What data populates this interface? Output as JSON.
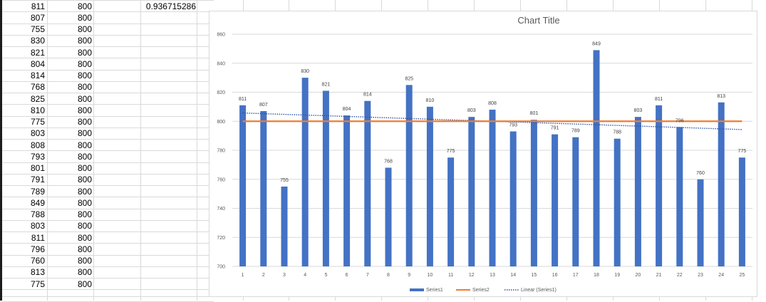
{
  "sheet": {
    "col_a": [
      "811",
      "807",
      "755",
      "830",
      "821",
      "804",
      "814",
      "768",
      "825",
      "810",
      "775",
      "803",
      "808",
      "793",
      "801",
      "791",
      "789",
      "849",
      "788",
      "803",
      "811",
      "796",
      "760",
      "813",
      "775"
    ],
    "col_b": [
      "800",
      "800",
      "800",
      "800",
      "800",
      "800",
      "800",
      "800",
      "800",
      "800",
      "800",
      "800",
      "800",
      "800",
      "800",
      "800",
      "800",
      "800",
      "800",
      "800",
      "800",
      "800",
      "800",
      "800",
      "800"
    ],
    "c1": "0.936715286"
  },
  "colors": {
    "series1": "#4472c4",
    "series2": "#ed7d31",
    "trend": "#2e54a8",
    "grid": "#d9d9d9"
  },
  "chart_data": {
    "type": "bar",
    "title": "Chart Title",
    "categories": [
      "1",
      "2",
      "3",
      "4",
      "5",
      "6",
      "7",
      "8",
      "9",
      "10",
      "11",
      "12",
      "13",
      "14",
      "15",
      "16",
      "17",
      "18",
      "19",
      "20",
      "21",
      "22",
      "23",
      "24",
      "25"
    ],
    "series": [
      {
        "name": "Series1",
        "type": "bar",
        "values": [
          811,
          807,
          755,
          830,
          821,
          804,
          814,
          768,
          825,
          810,
          775,
          803,
          808,
          793,
          801,
          791,
          789,
          849,
          788,
          803,
          811,
          796,
          760,
          813,
          775
        ]
      },
      {
        "name": "Series2",
        "type": "line",
        "values": [
          800,
          800,
          800,
          800,
          800,
          800,
          800,
          800,
          800,
          800,
          800,
          800,
          800,
          800,
          800,
          800,
          800,
          800,
          800,
          800,
          800,
          800,
          800,
          800,
          800
        ]
      }
    ],
    "trendline": {
      "name": "Linear (Series1)",
      "of": "Series1",
      "type": "linear",
      "style": "dotted"
    },
    "ylim": [
      700,
      860
    ],
    "yticks": [
      700,
      720,
      740,
      760,
      780,
      800,
      820,
      840,
      860
    ],
    "data_labels": true,
    "grid": true,
    "legend": "bottom",
    "xlabel": "",
    "ylabel": ""
  }
}
